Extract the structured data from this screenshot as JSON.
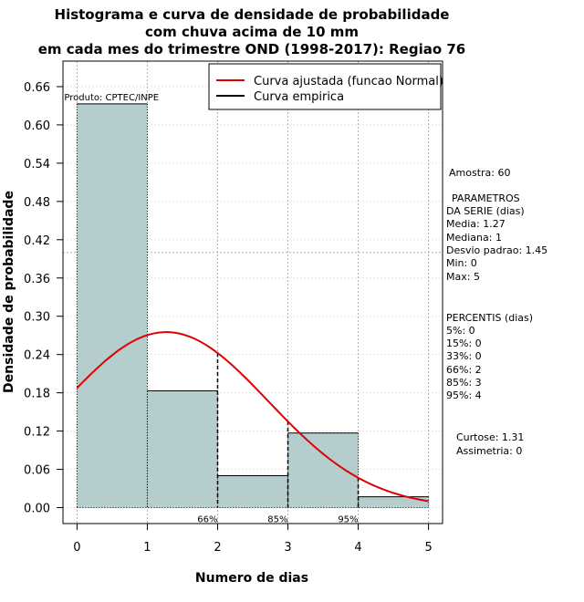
{
  "chart_data": {
    "type": "histogram",
    "title_lines": [
      "Histograma e curva de densidade de probabilidade",
      "com chuva acima de 10 mm",
      "em cada mes do trimestre OND (1998-2017): Regiao 76"
    ],
    "xlabel": "Numero de dias",
    "ylabel": "Densidade de probabilidade",
    "xlim": [
      -0.2,
      5.2
    ],
    "ylim": [
      -0.025,
      0.7
    ],
    "x_ticks": [
      "0",
      "1",
      "2",
      "3",
      "4",
      "5"
    ],
    "y_ticks": [
      "0.00",
      "0.06",
      "0.12",
      "0.18",
      "0.24",
      "0.30",
      "0.36",
      "0.42",
      "0.48",
      "0.54",
      "0.60",
      "0.66"
    ],
    "bins": [
      {
        "from": 0,
        "to": 1,
        "density": 0.633
      },
      {
        "from": 1,
        "to": 2,
        "density": 0.183
      },
      {
        "from": 2,
        "to": 3,
        "density": 0.05
      },
      {
        "from": 3,
        "to": 4,
        "density": 0.117
      },
      {
        "from": 4,
        "to": 5,
        "density": 0.017
      }
    ],
    "empirical_curve": [
      [
        2,
        0.05
      ],
      [
        3,
        0.05
      ],
      [
        3,
        0.117
      ],
      [
        4,
        0.117
      ],
      [
        4,
        0.017
      ],
      [
        5,
        0.017
      ]
    ],
    "normal_fit": {
      "mean": 1.27,
      "sd": 1.45,
      "x_from": 0,
      "x_to": 5
    },
    "percentile_markers": [
      {
        "x": 2,
        "label": "66%"
      },
      {
        "x": 3,
        "label": "85%"
      },
      {
        "x": 4,
        "label": "95%"
      }
    ],
    "product_label": "Produto: CPTEC/INPE",
    "legend": [
      {
        "label": "Curva ajustada (funcao Normal)",
        "color": "#e00000"
      },
      {
        "label": "Curva empirica",
        "color": "#000000"
      }
    ],
    "legend_position": "top-right",
    "grid": true,
    "colors": {
      "bar_fill": "#b5cdcd",
      "normal_line": "#e00000",
      "empirical_line": "#000000",
      "grid": "#b0b0b0"
    },
    "stats_lines": [
      "Amostra: 60",
      " PARAMETROS",
      "DA SERIE (dias)",
      "  Media: 1.27",
      "  Mediana: 1",
      "  Desvio padrao: 1.45",
      "  Min: 0",
      "  Max: 5",
      "PERCENTIS (dias)",
      "  5%: 0",
      "  15%: 0",
      "  33%: 0",
      "  66%: 2",
      "  85%: 3",
      "  95%: 4",
      "Curtose: 1.31",
      "  Assimetria: 0"
    ]
  }
}
